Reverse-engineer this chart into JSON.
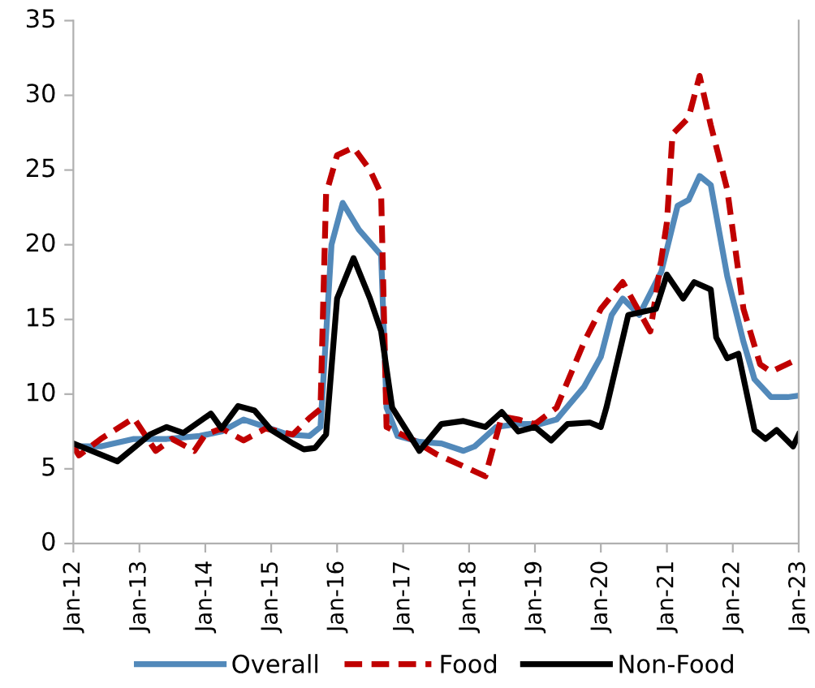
{
  "chart_data": {
    "type": "line",
    "xlim": [
      "2012-01",
      "2023-01"
    ],
    "ylim": [
      0,
      35
    ],
    "yticks": [
      0,
      5,
      10,
      15,
      20,
      25,
      30,
      35
    ],
    "xticks": [
      {
        "value": "2012-01",
        "label": "Jan-12"
      },
      {
        "value": "2013-01",
        "label": "Jan-13"
      },
      {
        "value": "2014-01",
        "label": "Jan-14"
      },
      {
        "value": "2015-01",
        "label": "Jan-15"
      },
      {
        "value": "2016-01",
        "label": "Jan-16"
      },
      {
        "value": "2017-01",
        "label": "Jan-17"
      },
      {
        "value": "2018-01",
        "label": "Jan-18"
      },
      {
        "value": "2019-01",
        "label": "Jan-19"
      },
      {
        "value": "2020-01",
        "label": "Jan-20"
      },
      {
        "value": "2021-01",
        "label": "Jan-21"
      },
      {
        "value": "2022-01",
        "label": "Jan-22"
      },
      {
        "value": "2023-01",
        "label": "Jan-23"
      }
    ],
    "grid": false,
    "legend": "bottom",
    "marker": "none",
    "series": [
      {
        "name": "Overall",
        "color": "#5289ba",
        "line_style": "solid",
        "x": [
          "2012-01",
          "2012-06",
          "2012-12",
          "2013-06",
          "2013-12",
          "2014-04",
          "2014-08",
          "2014-12",
          "2015-04",
          "2015-08",
          "2015-10",
          "2015-12",
          "2016-02",
          "2016-05",
          "2016-09",
          "2016-10",
          "2016-12",
          "2017-04",
          "2017-08",
          "2017-12",
          "2018-02",
          "2018-06",
          "2018-10",
          "2019-02",
          "2019-05",
          "2019-10",
          "2020-01",
          "2020-03",
          "2020-05",
          "2020-08",
          "2020-12",
          "2021-03",
          "2021-05",
          "2021-07",
          "2021-09",
          "2021-12",
          "2022-03",
          "2022-05",
          "2022-08",
          "2022-11",
          "2023-01"
        ],
        "values": [
          6.5,
          6.5,
          7.0,
          7.0,
          7.2,
          7.5,
          8.3,
          7.8,
          7.3,
          7.2,
          7.8,
          20.0,
          22.8,
          21.0,
          19.3,
          9.1,
          7.2,
          6.8,
          6.7,
          6.2,
          6.5,
          7.8,
          8.0,
          8.0,
          8.3,
          10.5,
          12.5,
          15.3,
          16.4,
          15.3,
          18.2,
          22.6,
          23.0,
          24.6,
          24.0,
          17.9,
          13.5,
          11.0,
          9.8,
          9.8,
          9.9
        ]
      },
      {
        "name": "Food",
        "color": "#c00000",
        "line_style": "dashed",
        "x": [
          "2012-01",
          "2012-02",
          "2012-06",
          "2012-12",
          "2013-04",
          "2013-07",
          "2013-11",
          "2014-01",
          "2014-04",
          "2014-08",
          "2014-12",
          "2015-05",
          "2015-08",
          "2015-10",
          "2015-11",
          "2016-01",
          "2016-04",
          "2016-07",
          "2016-09",
          "2016-10",
          "2017-03",
          "2017-07",
          "2018-01",
          "2018-04",
          "2018-07",
          "2018-10",
          "2019-01",
          "2019-05",
          "2019-10",
          "2020-01",
          "2020-05",
          "2020-10",
          "2021-01",
          "2021-02",
          "2021-05",
          "2021-07",
          "2021-09",
          "2021-12",
          "2022-03",
          "2022-06",
          "2022-08",
          "2022-12",
          "2023-01"
        ],
        "values": [
          6.5,
          5.9,
          7.0,
          8.4,
          6.2,
          7.0,
          6.2,
          7.3,
          7.7,
          6.9,
          7.7,
          7.3,
          8.4,
          9.0,
          23.4,
          26.0,
          26.5,
          25.0,
          23.4,
          7.8,
          6.9,
          6.0,
          5.0,
          4.5,
          8.5,
          8.3,
          8.0,
          9.1,
          13.5,
          15.7,
          17.5,
          14.2,
          21.5,
          27.4,
          28.5,
          31.3,
          28.0,
          23.7,
          15.7,
          12.0,
          11.5,
          12.2,
          12.0
        ]
      },
      {
        "name": "Non-Food",
        "color": "#000000",
        "line_style": "solid",
        "x": [
          "2012-01",
          "2012-09",
          "2013-03",
          "2013-06",
          "2013-09",
          "2014-02",
          "2014-04",
          "2014-07",
          "2014-10",
          "2015-01",
          "2015-05",
          "2015-07",
          "2015-09",
          "2015-11",
          "2016-01",
          "2016-04",
          "2016-07",
          "2016-09",
          "2016-11",
          "2017-04",
          "2017-08",
          "2017-12",
          "2018-04",
          "2018-07",
          "2018-10",
          "2019-01",
          "2019-04",
          "2019-07",
          "2019-11",
          "2020-01",
          "2020-02",
          "2020-06",
          "2020-11",
          "2021-01",
          "2021-04",
          "2021-06",
          "2021-09",
          "2021-10",
          "2021-12",
          "2022-02",
          "2022-05",
          "2022-07",
          "2022-09",
          "2022-12",
          "2023-01"
        ],
        "values": [
          6.7,
          5.5,
          7.3,
          7.8,
          7.4,
          8.7,
          7.7,
          9.2,
          8.9,
          7.6,
          6.7,
          6.3,
          6.4,
          7.3,
          16.4,
          19.1,
          16.4,
          14.2,
          9.1,
          6.2,
          8.0,
          8.2,
          7.8,
          8.8,
          7.5,
          7.8,
          6.9,
          8.0,
          8.1,
          7.8,
          9.1,
          15.3,
          15.7,
          18.0,
          16.4,
          17.5,
          17.0,
          13.8,
          12.4,
          12.7,
          7.6,
          7.0,
          7.6,
          6.5,
          7.3
        ]
      }
    ]
  }
}
